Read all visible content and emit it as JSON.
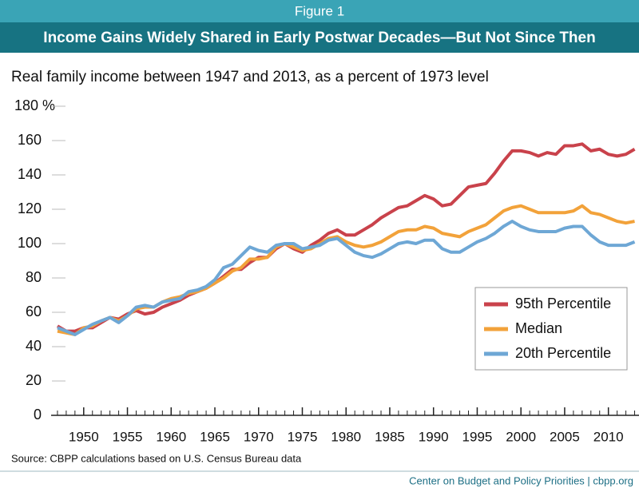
{
  "chart_data": {
    "type": "line",
    "header": "Figure 1",
    "title": "Income Gains Widely Shared in Early Postwar Decades—But Not Since Then",
    "subtitle": "Real family income between 1947 and 2013, as a percent of 1973 level",
    "source": "Source: CBPP calculations based on U.S. Census Bureau data",
    "credit": "Center on Budget and Policy Priorities | cbpp.org",
    "x": [
      1947,
      1948,
      1949,
      1950,
      1951,
      1952,
      1953,
      1954,
      1955,
      1956,
      1957,
      1958,
      1959,
      1960,
      1961,
      1962,
      1963,
      1964,
      1965,
      1966,
      1967,
      1968,
      1969,
      1970,
      1971,
      1972,
      1973,
      1974,
      1975,
      1976,
      1977,
      1978,
      1979,
      1980,
      1981,
      1982,
      1983,
      1984,
      1985,
      1986,
      1987,
      1988,
      1989,
      1990,
      1991,
      1992,
      1993,
      1994,
      1995,
      1996,
      1997,
      1998,
      1999,
      2000,
      2001,
      2002,
      2003,
      2004,
      2005,
      2006,
      2007,
      2008,
      2009,
      2010,
      2011,
      2012,
      2013
    ],
    "series": [
      {
        "name": "95th Percentile",
        "color": "#c9424b",
        "values": [
          52,
          49,
          49,
          51,
          51,
          54,
          57,
          56,
          59,
          61,
          59,
          60,
          63,
          65,
          67,
          70,
          72,
          74,
          77,
          81,
          85,
          85,
          89,
          92,
          92,
          97,
          100,
          97,
          95,
          99,
          102,
          106,
          108,
          105,
          105,
          108,
          111,
          115,
          118,
          121,
          122,
          125,
          128,
          126,
          122,
          123,
          128,
          133,
          134,
          135,
          141,
          148,
          154,
          154,
          153,
          151,
          153,
          152,
          157,
          157,
          158,
          154,
          155,
          152,
          151,
          152,
          155
        ]
      },
      {
        "name": "Median",
        "color": "#f2a23a",
        "values": [
          49,
          48,
          47,
          51,
          52,
          55,
          57,
          55,
          58,
          62,
          63,
          63,
          66,
          68,
          69,
          71,
          72,
          74,
          77,
          80,
          84,
          86,
          91,
          91,
          92,
          98,
          100,
          98,
          96,
          97,
          100,
          103,
          104,
          101,
          99,
          98,
          99,
          101,
          104,
          107,
          108,
          108,
          110,
          109,
          106,
          105,
          104,
          107,
          109,
          111,
          115,
          119,
          121,
          122,
          120,
          118,
          118,
          118,
          118,
          119,
          122,
          118,
          117,
          115,
          113,
          112,
          113
        ]
      },
      {
        "name": "20th Percentile",
        "color": "#6ea7d5",
        "values": [
          51,
          49,
          47,
          50,
          53,
          55,
          57,
          54,
          58,
          63,
          64,
          63,
          66,
          67,
          68,
          72,
          73,
          75,
          79,
          86,
          88,
          93,
          98,
          96,
          95,
          99,
          100,
          100,
          97,
          98,
          99,
          102,
          103,
          99,
          95,
          93,
          92,
          94,
          97,
          100,
          101,
          100,
          102,
          102,
          97,
          95,
          95,
          98,
          101,
          103,
          106,
          110,
          113,
          110,
          108,
          107,
          107,
          107,
          109,
          110,
          110,
          105,
          101,
          99,
          99,
          99,
          101
        ]
      }
    ],
    "xlim": [
      1946,
      2013.5
    ],
    "xticks": [
      1950,
      1955,
      1960,
      1965,
      1970,
      1975,
      1980,
      1985,
      1990,
      1995,
      2000,
      2005,
      2010
    ],
    "ylim": [
      0,
      180
    ],
    "yticks": [
      0,
      20,
      40,
      60,
      80,
      100,
      120,
      140,
      160,
      {
        "value": 180,
        "label": "180 %"
      }
    ],
    "grid": true
  }
}
